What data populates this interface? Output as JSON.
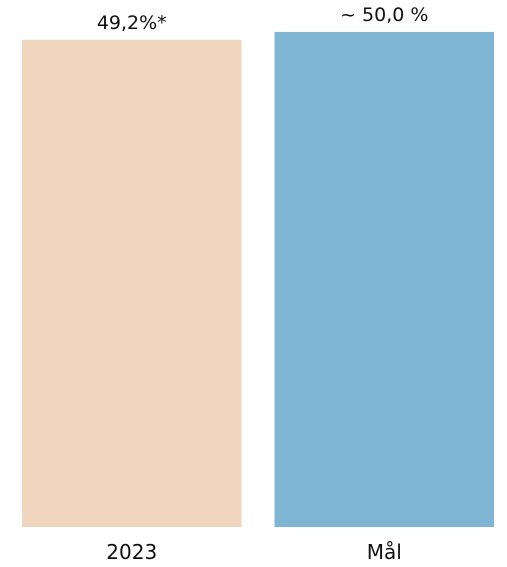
{
  "chart_data": {
    "type": "bar",
    "categories": [
      "2023",
      "Mål"
    ],
    "values": [
      49.2,
      50.0
    ],
    "data_labels": [
      "49,2%*",
      "~ 50,0 %"
    ],
    "colors": [
      "#f0d5bf",
      "#7fb4d3"
    ],
    "title": "",
    "xlabel": "",
    "ylabel": "",
    "ylim": [
      0,
      50.8
    ],
    "grid": false,
    "legend": "none"
  }
}
